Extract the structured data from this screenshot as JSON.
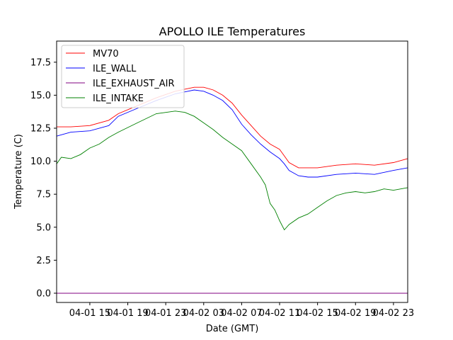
{
  "chart_data": {
    "type": "line",
    "title": "APOLLO ILE Temperatures",
    "xlabel": "Date (GMT)",
    "ylabel": "Temperature (C)",
    "x_unit": "hours since 04-01 00:00 GMT",
    "xlim": [
      11.5,
      48.5
    ],
    "ylim": [
      -0.7,
      19.1
    ],
    "xticks": [
      {
        "value": 15,
        "label": "04-01 15"
      },
      {
        "value": 19,
        "label": "04-01 19"
      },
      {
        "value": 23,
        "label": "04-01 23"
      },
      {
        "value": 27,
        "label": "04-02 03"
      },
      {
        "value": 31,
        "label": "04-02 07"
      },
      {
        "value": 35,
        "label": "04-02 11"
      },
      {
        "value": 39,
        "label": "04-02 15"
      },
      {
        "value": 43,
        "label": "04-02 19"
      },
      {
        "value": 47,
        "label": "04-02 23"
      }
    ],
    "yticks": [
      {
        "value": 0,
        "label": "0.0"
      },
      {
        "value": 2.5,
        "label": "2.5"
      },
      {
        "value": 5,
        "label": "5.0"
      },
      {
        "value": 7.5,
        "label": "7.5"
      },
      {
        "value": 10,
        "label": "10.0"
      },
      {
        "value": 12.5,
        "label": "12.5"
      },
      {
        "value": 15,
        "label": "15.0"
      },
      {
        "value": 17.5,
        "label": "17.5"
      }
    ],
    "legend_position": "top-left",
    "series": [
      {
        "name": "MV70",
        "color": "#ff0000",
        "x": [
          11.5,
          13,
          15,
          17,
          18,
          20,
          22,
          24,
          26,
          27,
          28,
          29,
          30,
          31,
          32,
          33,
          34,
          35,
          35.5,
          36,
          37,
          38,
          39,
          41,
          43,
          45,
          47,
          48.5
        ],
        "y": [
          12.6,
          12.6,
          12.7,
          13.1,
          13.6,
          14.2,
          14.8,
          15.3,
          15.6,
          15.6,
          15.4,
          15.0,
          14.4,
          13.5,
          12.7,
          11.9,
          11.3,
          10.9,
          10.4,
          9.9,
          9.5,
          9.5,
          9.5,
          9.7,
          9.8,
          9.7,
          9.9,
          10.2
        ]
      },
      {
        "name": "ILE_WALL",
        "color": "#0000ff",
        "x": [
          11.5,
          13,
          15,
          17,
          18,
          20,
          22,
          24,
          26,
          27,
          28,
          29,
          30,
          31,
          32,
          33,
          34,
          35,
          35.5,
          36,
          37,
          38,
          39,
          41,
          43,
          45,
          47,
          48.5
        ],
        "y": [
          11.9,
          12.2,
          12.3,
          12.7,
          13.4,
          14.0,
          14.6,
          15.1,
          15.4,
          15.3,
          15.0,
          14.6,
          13.9,
          12.8,
          12.0,
          11.3,
          10.7,
          10.2,
          9.8,
          9.3,
          8.9,
          8.8,
          8.8,
          9.0,
          9.1,
          9.0,
          9.3,
          9.5
        ]
      },
      {
        "name": "ILE_EXHAUST_AIR",
        "color": "#800080",
        "x": [
          11.5,
          48.5
        ],
        "y": [
          0.0,
          0.0
        ]
      },
      {
        "name": "ILE_INTAKE",
        "color": "#008000",
        "x": [
          11.5,
          12,
          13,
          14,
          15,
          16,
          17,
          18,
          20,
          22,
          24,
          25,
          26,
          27,
          28,
          29,
          30,
          31,
          32,
          33,
          33.5,
          34,
          34.5,
          35,
          35.5,
          36,
          37,
          38,
          39,
          40,
          41,
          42,
          43,
          44,
          45,
          46,
          47,
          48.5
        ],
        "y": [
          9.8,
          10.3,
          10.2,
          10.5,
          11.0,
          11.3,
          11.8,
          12.2,
          12.9,
          13.6,
          13.8,
          13.7,
          13.4,
          12.9,
          12.4,
          11.8,
          11.3,
          10.8,
          9.8,
          8.8,
          8.2,
          6.8,
          6.3,
          5.5,
          4.8,
          5.2,
          5.7,
          6.0,
          6.5,
          7.0,
          7.4,
          7.6,
          7.7,
          7.6,
          7.7,
          7.9,
          7.8,
          8.0
        ]
      }
    ]
  }
}
